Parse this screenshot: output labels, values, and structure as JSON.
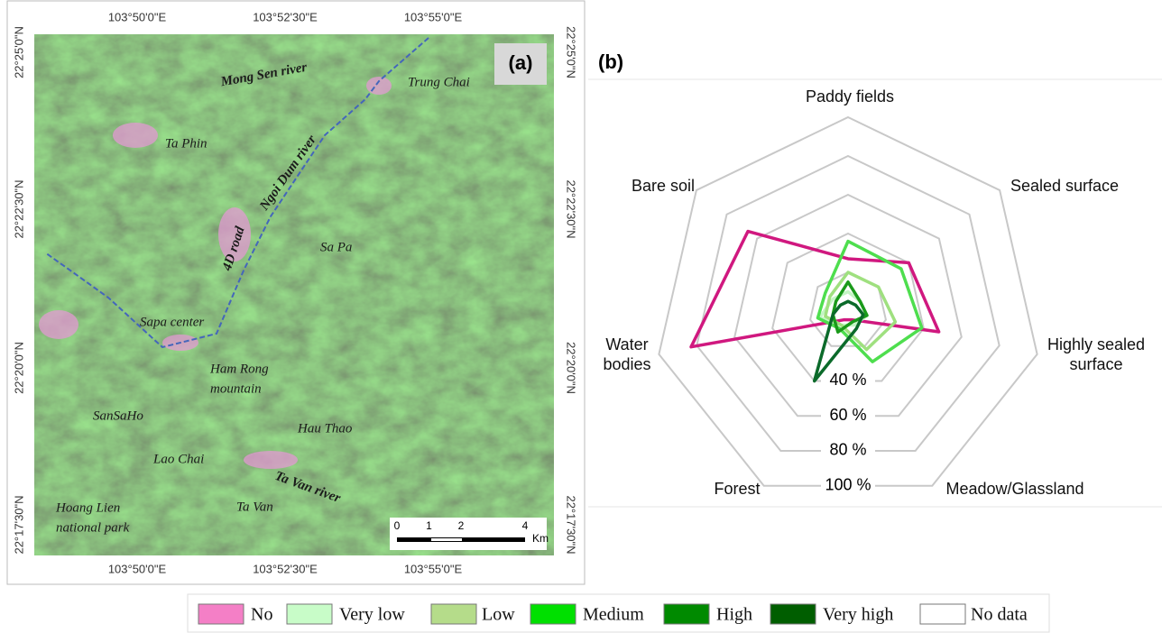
{
  "map": {
    "panel_label": "(a)",
    "top_labels": [
      "103°50'0\"E",
      "103°52'30\"E",
      "103°55'0\"E"
    ],
    "bottom_labels": [
      "103°50'0\"E",
      "103°52'30\"E",
      "103°55'0\"E"
    ],
    "left_labels": [
      "22°25'0\"N",
      "22°22'30\"N",
      "22°20'0\"N",
      "22°17'30\"N"
    ],
    "right_labels": [
      "22°25'0\"N",
      "22°22'30\"N",
      "22°20'0\"N",
      "22°17'30\"N"
    ],
    "places": [
      "Mong Sen river",
      "Trung Chai",
      "Ta Phin",
      "Ngoi Dum river",
      "4D road",
      "Sa Pa",
      "Sapa center",
      [
        "Ham Rong",
        "mountain"
      ],
      "SanSaHo",
      "Hau Thao",
      "Lao Chai",
      "Ta Van river",
      "Ta Van",
      [
        "Hoang Lien",
        "national park"
      ]
    ],
    "scale": {
      "ticks": [
        0,
        1,
        2,
        4
      ],
      "unit": "Km"
    }
  },
  "chart_data": {
    "type": "radar",
    "label": "(b)",
    "categories": [
      "Paddy fields",
      "Sealed surface",
      "Highly sealed surface",
      "Meadow/Glassland",
      "Forest",
      "Water bodies",
      "Bare soil"
    ],
    "rlim": [
      0,
      100
    ],
    "rticks": [
      {
        "value": 20,
        "label": null
      },
      {
        "value": 40,
        "label": "40 %"
      },
      {
        "value": 60,
        "label": "60 %"
      },
      {
        "value": 80,
        "label": "80 %"
      },
      {
        "value": 100,
        "label": "100 %"
      }
    ],
    "series": [
      {
        "color": "#d0187f",
        "values": [
          27,
          40,
          48,
          5,
          5,
          83,
          66
        ]
      },
      {
        "color": "#c4f5c4",
        "values": [
          10,
          8,
          10,
          8,
          8,
          15,
          10
        ]
      },
      {
        "color": "#9fe07f",
        "values": [
          20,
          20,
          25,
          22,
          8,
          12,
          12
        ]
      },
      {
        "color": "#4ede4e",
        "values": [
          36,
          35,
          39,
          29,
          10,
          16,
          15
        ]
      },
      {
        "color": "#1a9a1a",
        "values": [
          15,
          8,
          10,
          6,
          12,
          8,
          8
        ]
      },
      {
        "color": "#0b6a2a",
        "values": [
          5,
          5,
          8,
          10,
          40,
          8,
          5
        ]
      }
    ]
  },
  "legend": {
    "items": [
      {
        "name": "No",
        "color": "#f47fc6"
      },
      {
        "name": "Very low",
        "color": "#c8fcc8"
      },
      {
        "name": "Low",
        "color": "#b5dc8a"
      },
      {
        "name": "Medium",
        "color": "#00e000"
      },
      {
        "name": "High",
        "color": "#008a00"
      },
      {
        "name": "Very high",
        "color": "#005e00"
      },
      {
        "name": "No data",
        "color": "#ffffff"
      }
    ]
  }
}
